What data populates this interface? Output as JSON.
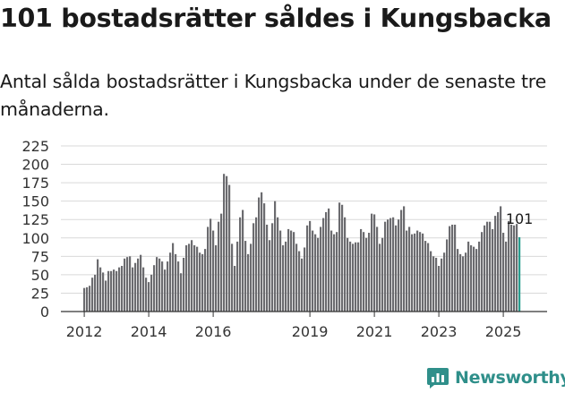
{
  "header": {
    "title": "101 bostadsrätter såldes i Kungsbacka",
    "subtitle": "Antal sålda bostadsrätter i Kungsbacka under de senaste tre månaderna."
  },
  "brand": {
    "name": "Newsworthy",
    "color": "#2f8f8a",
    "icon": "bar-chart-logo-icon"
  },
  "colors": {
    "bar": "#6b6b6f",
    "highlight": "#2a9d8f",
    "grid": "#d9d9d9",
    "axis": "#333333"
  },
  "chart_data": {
    "type": "bar",
    "title": "",
    "xlabel": "",
    "ylabel": "",
    "ylim": [
      0,
      225
    ],
    "yticks": [
      "0",
      "25",
      "50",
      "75",
      "100",
      "125",
      "150",
      "175",
      "200",
      "225"
    ],
    "xticks": [
      {
        "label": "2012",
        "index": 0
      },
      {
        "label": "2014",
        "index": 24
      },
      {
        "label": "2016",
        "index": 48
      },
      {
        "label": "2019",
        "index": 84
      },
      {
        "label": "2021",
        "index": 108
      },
      {
        "label": "2023",
        "index": 132
      },
      {
        "label": "2025",
        "index": 156
      }
    ],
    "grid": true,
    "legend": "none",
    "start_month": "2012-01",
    "values": [
      32,
      33,
      35,
      46,
      50,
      71,
      60,
      53,
      42,
      55,
      55,
      57,
      55,
      60,
      62,
      72,
      74,
      75,
      60,
      66,
      72,
      77,
      60,
      46,
      40,
      50,
      63,
      74,
      72,
      68,
      57,
      68,
      80,
      93,
      78,
      68,
      52,
      73,
      90,
      92,
      97,
      90,
      88,
      80,
      78,
      85,
      115,
      126,
      110,
      90,
      122,
      133,
      187,
      184,
      172,
      92,
      62,
      95,
      128,
      138,
      96,
      78,
      92,
      120,
      128,
      155,
      162,
      147,
      118,
      97,
      120,
      150,
      128,
      110,
      90,
      95,
      112,
      110,
      108,
      92,
      82,
      72,
      87,
      117,
      123,
      110,
      105,
      100,
      115,
      127,
      135,
      140,
      110,
      105,
      108,
      148,
      145,
      128,
      100,
      95,
      92,
      94,
      94,
      112,
      108,
      100,
      107,
      133,
      132,
      115,
      92,
      100,
      122,
      125,
      127,
      128,
      117,
      125,
      138,
      143,
      110,
      115,
      105,
      106,
      110,
      108,
      106,
      96,
      93,
      82,
      75,
      73,
      62,
      72,
      80,
      98,
      116,
      118,
      118,
      85,
      78,
      75,
      80,
      95,
      90,
      88,
      85,
      95,
      108,
      117,
      122,
      122,
      112,
      130,
      135,
      143,
      107,
      95,
      123,
      118,
      117,
      119,
      101
    ],
    "annotations": [
      {
        "index": 162,
        "text": "101"
      }
    ]
  }
}
